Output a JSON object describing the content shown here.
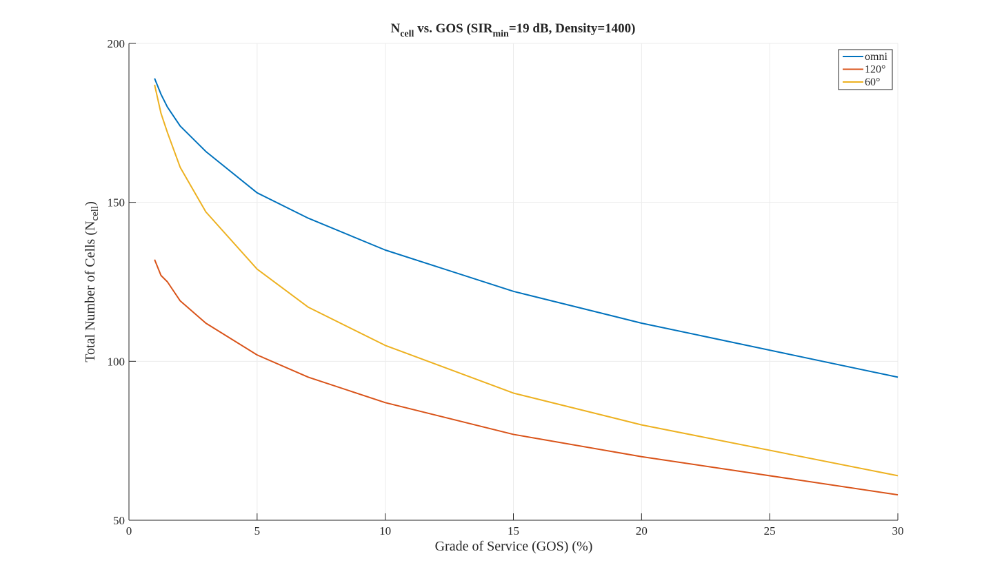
{
  "chart_data": {
    "type": "line",
    "title": "N_cell vs. GOS (SIR_min=19 dB, Density=1400)",
    "title_parts": {
      "n": "N",
      "cell": "cell",
      "vs": " vs. GOS (SIR",
      "min": "min",
      "rest": "=19 dB, Density=1400)"
    },
    "xlabel": "Grade of Service (GOS) (%)",
    "ylabel_parts": {
      "main": "Total Number of Cells (N",
      "sub": "cell",
      "close": ")"
    },
    "xlim": [
      0,
      30
    ],
    "ylim": [
      50,
      200
    ],
    "xticks": [
      0,
      5,
      10,
      15,
      20,
      25,
      30
    ],
    "yticks": [
      50,
      100,
      150,
      200
    ],
    "grid": true,
    "legend_position": "top-right",
    "x": [
      1,
      1.25,
      1.5,
      2,
      3,
      5,
      7,
      10,
      15,
      20,
      30
    ],
    "series": [
      {
        "name": "omni",
        "color": "#0072BD",
        "values": [
          189,
          184,
          180,
          174,
          166,
          153,
          145,
          135,
          122,
          112,
          95
        ]
      },
      {
        "name": "120°",
        "color": "#D95319",
        "values": [
          132,
          127,
          125,
          119,
          112,
          102,
          95,
          87,
          77,
          70,
          58
        ]
      },
      {
        "name": "60°",
        "color": "#EDB120",
        "values": [
          187,
          178,
          172,
          161,
          147,
          129,
          117,
          105,
          90,
          80,
          64
        ]
      }
    ]
  }
}
